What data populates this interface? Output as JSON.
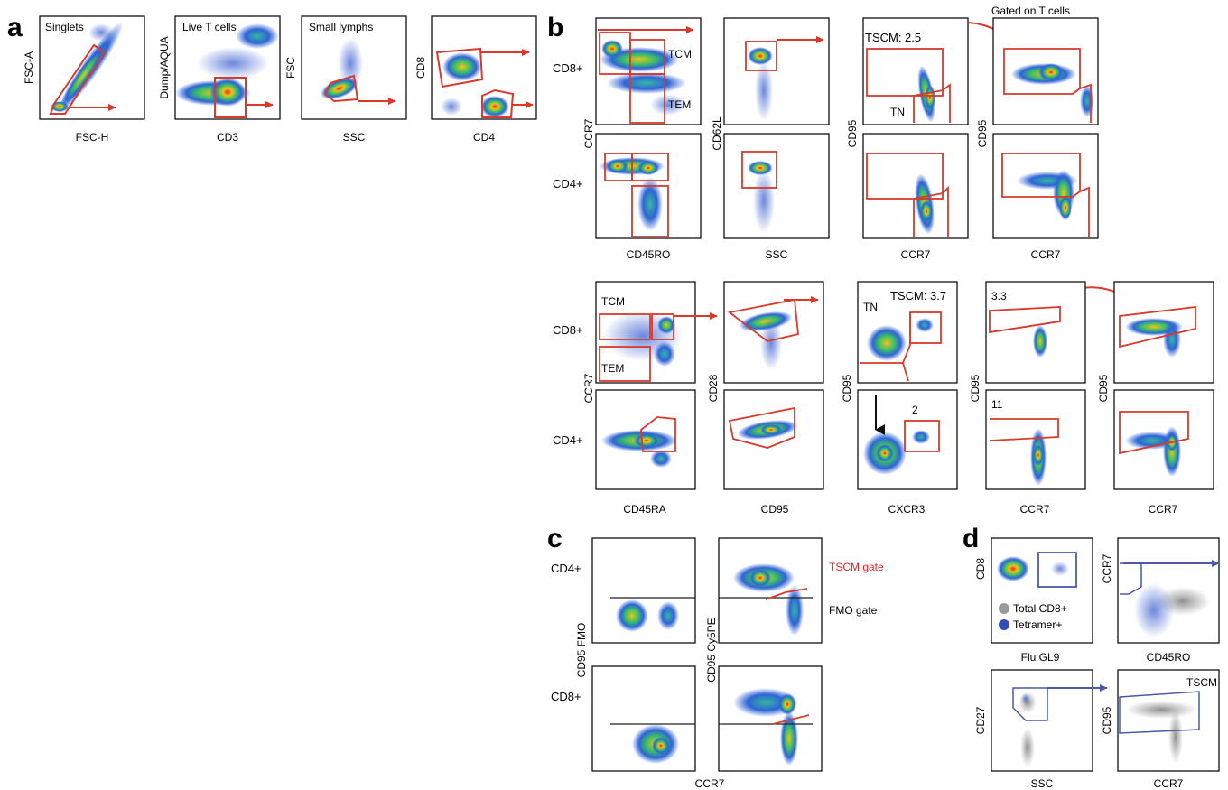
{
  "figure": {
    "panel_labels": [
      "a",
      "b",
      "c",
      "d"
    ],
    "colors": {
      "gate": "#d93a2b",
      "blue_gate": "#4a5aa8",
      "frame": "#111111",
      "tetramer": "#2f4fb5",
      "total_cd8": "#9a9a9a"
    },
    "panel_a": {
      "plots": [
        {
          "title": "Singlets",
          "xlabel": "FSC-H",
          "ylabel": "FSC-A"
        },
        {
          "title": "Live T cells",
          "xlabel": "CD3",
          "ylabel": "Dump/AQUA"
        },
        {
          "title": "Small lymphs",
          "xlabel": "SSC",
          "ylabel": "FSC"
        },
        {
          "title": "",
          "xlabel": "CD4",
          "ylabel": "CD8"
        }
      ]
    },
    "panel_b_top": {
      "header": "Gated on T cells",
      "row_labels": [
        "CD8+",
        "CD4+"
      ],
      "left_ylabel": "CCR7",
      "col_xlabels": [
        "CD45RO",
        "SSC",
        "CCR7",
        "CCR7"
      ],
      "col_ylabels": [
        "",
        "CD62L",
        "CD95",
        "CD95"
      ],
      "gate_text": {
        "tcm": "TCM",
        "tem": "TEM",
        "tn": "TN",
        "tscm": "TSCM: 2.5"
      }
    },
    "panel_b_bottom": {
      "row_labels": [
        "CD8+",
        "CD4+"
      ],
      "left_ylabel": "CCR7",
      "col_xlabels": [
        "CD45RA",
        "CD95",
        "CXCR3",
        "CCR7",
        "CCR7"
      ],
      "col_ylabels": [
        "",
        "CD28",
        "CD95",
        "CD95",
        "CD95"
      ],
      "gate_text": {
        "tcm": "TCM",
        "tem": "TEM",
        "tn": "TN",
        "tscm": "TSCM: 3.7"
      },
      "numbers": [
        "3.3",
        "2",
        "11"
      ]
    },
    "panel_c": {
      "row_labels": [
        "CD4+",
        "CD8+"
      ],
      "left_ylabel": "CD95 FMO",
      "right_ylabel": "CD95 Cy5PE",
      "xlabel": "CCR7",
      "tscm_gate": "TSCM gate",
      "fmo_gate": "FMO gate"
    },
    "panel_d": {
      "plots": [
        {
          "xlabel": "Flu GL9",
          "ylabel": "CD8"
        },
        {
          "xlabel": "CD45RO",
          "ylabel": "CCR7"
        },
        {
          "xlabel": "SSC",
          "ylabel": "CD27"
        },
        {
          "xlabel": "CCR7",
          "ylabel": "CD95"
        }
      ],
      "legend": [
        "Total CD8+",
        "Tetramer+"
      ],
      "tscm_label": "TSCM"
    }
  }
}
